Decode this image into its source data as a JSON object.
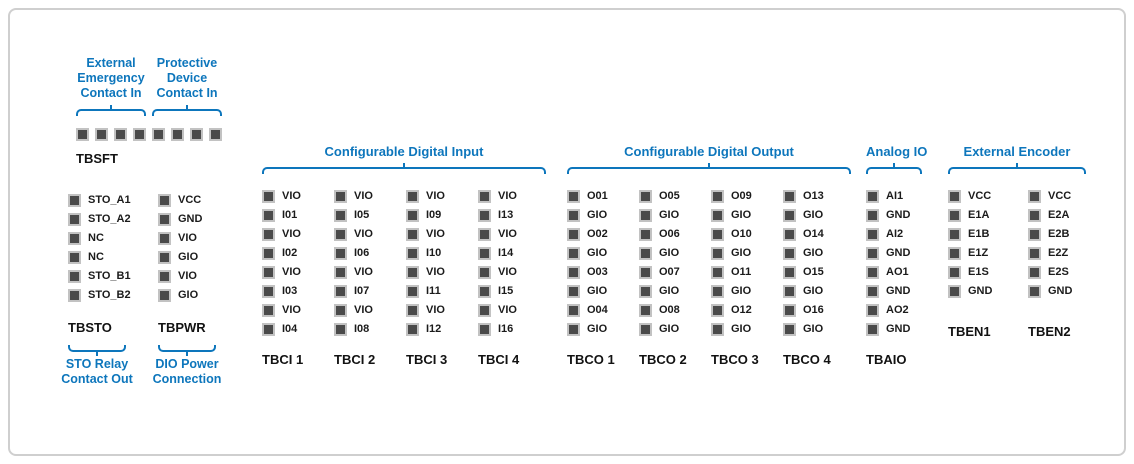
{
  "colors": {
    "accent": "#0d76bc",
    "pin_fill": "#4a4a4a",
    "pin_border": "#c2c2c2",
    "text": "#1b1b1b"
  },
  "tbsft": {
    "name": "TBSFT",
    "pin_count": 8,
    "captions": [
      {
        "lines": [
          "External",
          "Emergency",
          "Contact In"
        ]
      },
      {
        "lines": [
          "Protective",
          "Device",
          "Contact In"
        ]
      }
    ]
  },
  "left_blocks": [
    {
      "name": "TBSTO",
      "pins": [
        "STO_A1",
        "STO_A2",
        "NC",
        "NC",
        "STO_B1",
        "STO_B2"
      ],
      "caption": [
        "STO Relay",
        "Contact Out"
      ]
    },
    {
      "name": "TBPWR",
      "pins": [
        "VCC",
        "GND",
        "VIO",
        "GIO",
        "VIO",
        "GIO"
      ],
      "caption": [
        "DIO Power",
        "Connection"
      ]
    }
  ],
  "sections": [
    {
      "header": "Configurable Digital Input",
      "columns": [
        {
          "name": "TBCI 1",
          "pins": [
            "VIO",
            "I01",
            "VIO",
            "I02",
            "VIO",
            "I03",
            "VIO",
            "I04"
          ]
        },
        {
          "name": "TBCI 2",
          "pins": [
            "VIO",
            "I05",
            "VIO",
            "I06",
            "VIO",
            "I07",
            "VIO",
            "I08"
          ]
        },
        {
          "name": "TBCI 3",
          "pins": [
            "VIO",
            "I09",
            "VIO",
            "I10",
            "VIO",
            "I11",
            "VIO",
            "I12"
          ]
        },
        {
          "name": "TBCI 4",
          "pins": [
            "VIO",
            "I13",
            "VIO",
            "I14",
            "VIO",
            "I15",
            "VIO",
            "I16"
          ]
        }
      ]
    },
    {
      "header": "Configurable Digital Output",
      "columns": [
        {
          "name": "TBCO 1",
          "pins": [
            "O01",
            "GIO",
            "O02",
            "GIO",
            "O03",
            "GIO",
            "O04",
            "GIO"
          ]
        },
        {
          "name": "TBCO 2",
          "pins": [
            "O05",
            "GIO",
            "O06",
            "GIO",
            "O07",
            "GIO",
            "O08",
            "GIO"
          ]
        },
        {
          "name": "TBCO 3",
          "pins": [
            "O09",
            "GIO",
            "O10",
            "GIO",
            "O11",
            "GIO",
            "O12",
            "GIO"
          ]
        },
        {
          "name": "TBCO 4",
          "pins": [
            "O13",
            "GIO",
            "O14",
            "GIO",
            "O15",
            "GIO",
            "O16",
            "GIO"
          ]
        }
      ]
    },
    {
      "header": "Analog IO",
      "columns": [
        {
          "name": "TBAIO",
          "pins": [
            "AI1",
            "GND",
            "AI2",
            "GND",
            "AO1",
            "GND",
            "AO2",
            "GND"
          ]
        }
      ]
    },
    {
      "header": "External Encoder",
      "columns": [
        {
          "name": "TBEN1",
          "pins": [
            "VCC",
            "E1A",
            "E1B",
            "E1Z",
            "E1S",
            "GND"
          ]
        },
        {
          "name": "TBEN2",
          "pins": [
            "VCC",
            "E2A",
            "E2B",
            "E2Z",
            "E2S",
            "GND"
          ]
        }
      ]
    }
  ]
}
